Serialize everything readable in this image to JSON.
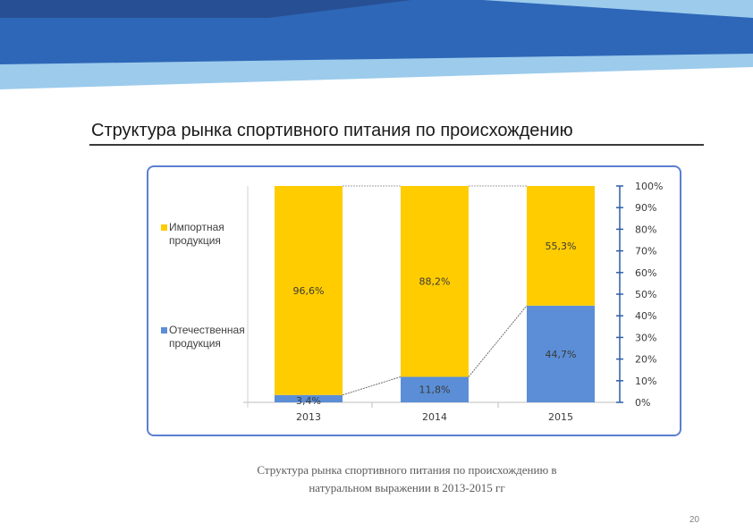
{
  "slide": {
    "title": "Структура рынка спортивного питания по происхождению",
    "caption_line1": "Структура рынка спортивного питания по происхождению в",
    "caption_line2": "натуральном выражении в 2013-2015 гг",
    "page_number": "20"
  },
  "legend": {
    "imported": "Импортная продукция",
    "domestic": "Отечественная продукция"
  },
  "colors": {
    "imported": "#ffcc00",
    "domestic": "#5b8ed6",
    "banner_dark": "#2e67b8",
    "banner_light": "#9ccbec",
    "frame": "#5b7fd1"
  },
  "chart_data": {
    "type": "bar",
    "stacked": true,
    "categories": [
      "2013",
      "2014",
      "2015"
    ],
    "series": [
      {
        "name": "Отечественная продукция",
        "values": [
          3.4,
          11.8,
          44.7
        ],
        "labels": [
          "3,4%",
          "11,8%",
          "44,7%"
        ]
      },
      {
        "name": "Импортная продукция",
        "values": [
          96.6,
          88.2,
          55.3
        ],
        "labels": [
          "96,6%",
          "88,2%",
          "55,3%"
        ]
      }
    ],
    "y_axis": {
      "position": "right",
      "range": [
        0,
        100
      ],
      "ticks": [
        "0%",
        "10%",
        "20%",
        "30%",
        "40%",
        "50%",
        "60%",
        "70%",
        "80%",
        "90%",
        "100%"
      ]
    },
    "series_lines": true,
    "legend_position": "left",
    "title": "",
    "xlabel": "",
    "ylabel": ""
  }
}
